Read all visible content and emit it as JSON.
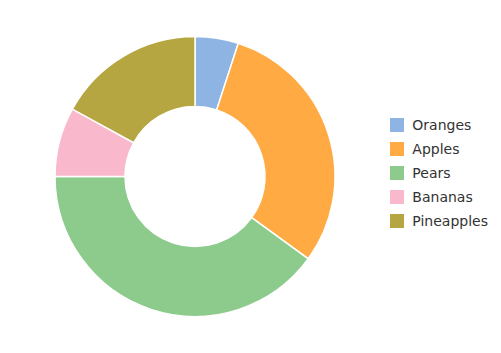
{
  "chart_data": {
    "type": "pie",
    "categories": [
      "Oranges",
      "Apples",
      "Pears",
      "Bananas",
      "Pineapples"
    ],
    "values": [
      5,
      30,
      40,
      8,
      17
    ],
    "colors": [
      "#8eb4e3",
      "#ffaa42",
      "#8dcb8d",
      "#f9b8cc",
      "#b5a642"
    ],
    "legend": "right"
  }
}
